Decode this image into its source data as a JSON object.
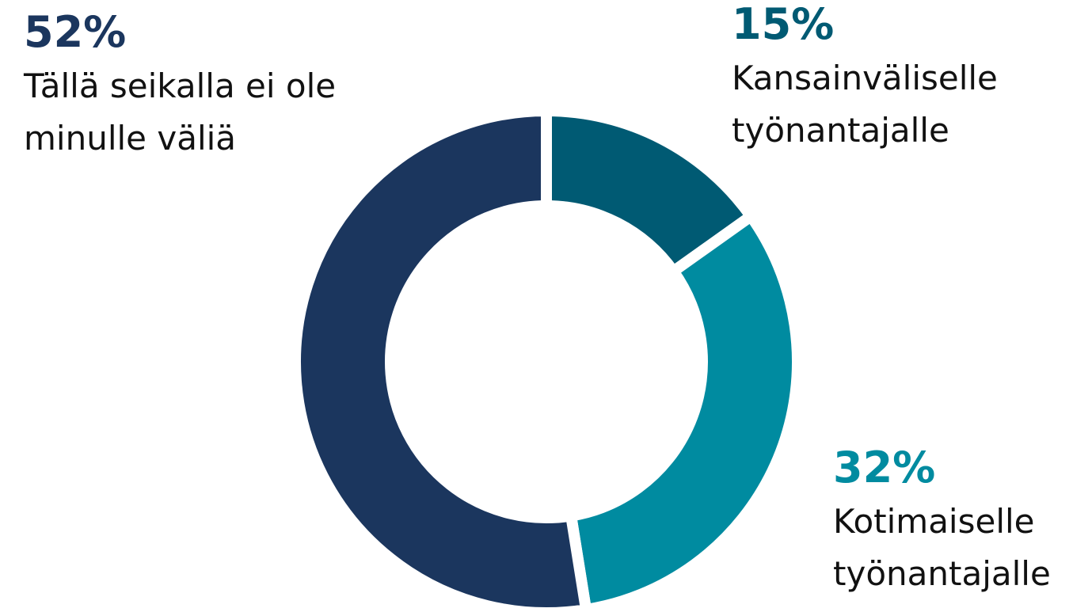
{
  "chart_data": {
    "type": "donut",
    "categories": [
      "Kansainväliselle työnantajalle",
      "Kotimaiselle työnantajalle",
      "Tällä seikalla ei ole minulle väliä"
    ],
    "values": [
      15,
      32,
      52
    ],
    "value_labels": [
      "15%",
      "32%",
      "52%"
    ],
    "colors": [
      "#005a73",
      "#008ba0",
      "#1b365e"
    ]
  }
}
